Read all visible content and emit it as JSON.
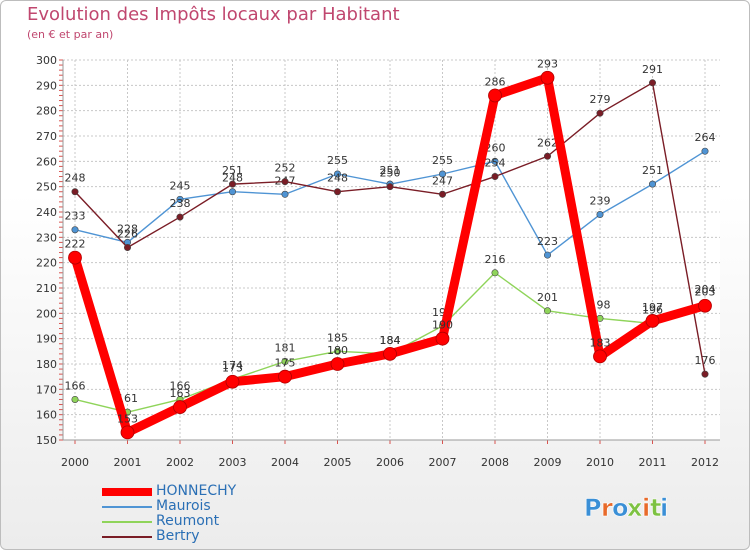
{
  "header": {
    "title": "Evolution des Impôts locaux par Habitant",
    "subtitle": "(en € et par an)"
  },
  "brand": {
    "name": "Proxiti",
    "letters": [
      "P",
      "r",
      "o",
      "x",
      "i",
      "t",
      "i"
    ],
    "colors": [
      "#3a8fd6",
      "#e86a2a",
      "#3a8fd6",
      "#7dc242",
      "#e86a2a",
      "#7dc242",
      "#3a8fd6"
    ]
  },
  "chart_data": {
    "type": "line",
    "title": "Evolution des Impôts locaux par Habitant",
    "subtitle": "(en € et par an)",
    "xlabel": "",
    "ylabel": "",
    "ylim": [
      150,
      300
    ],
    "yticks": [
      150,
      160,
      170,
      180,
      190,
      200,
      210,
      220,
      230,
      240,
      250,
      260,
      270,
      280,
      290,
      300
    ],
    "grid": true,
    "legend_position": "bottom-left",
    "x": [
      "2000",
      "2001",
      "2002",
      "2003",
      "2004",
      "2005",
      "2006",
      "2007",
      "2008",
      "2009",
      "2010",
      "2011",
      "2012"
    ],
    "series": [
      {
        "name": "Reumont",
        "color": "#8fd45a",
        "thick": false,
        "values": [
          166,
          161,
          166,
          174,
          181,
          185,
          184,
          195,
          216,
          201,
          198,
          196,
          204
        ]
      },
      {
        "name": "Maurois",
        "color": "#4f94d4",
        "thick": false,
        "values": [
          233,
          228,
          245,
          248,
          247,
          255,
          251,
          255,
          260,
          223,
          239,
          251,
          264
        ]
      },
      {
        "name": "Bertry",
        "color": "#7a1d26",
        "thick": false,
        "values": [
          248,
          226,
          238,
          251,
          252,
          248,
          250,
          247,
          254,
          262,
          279,
          291,
          176
        ]
      },
      {
        "name": "HONNECHY",
        "color": "#ff0000",
        "thick": true,
        "values": [
          222,
          153,
          163,
          173,
          175,
          180,
          184,
          190,
          286,
          293,
          183,
          197,
          203
        ]
      }
    ],
    "legend": [
      "HONNECHY",
      "Maurois",
      "Reumont",
      "Bertry"
    ]
  }
}
